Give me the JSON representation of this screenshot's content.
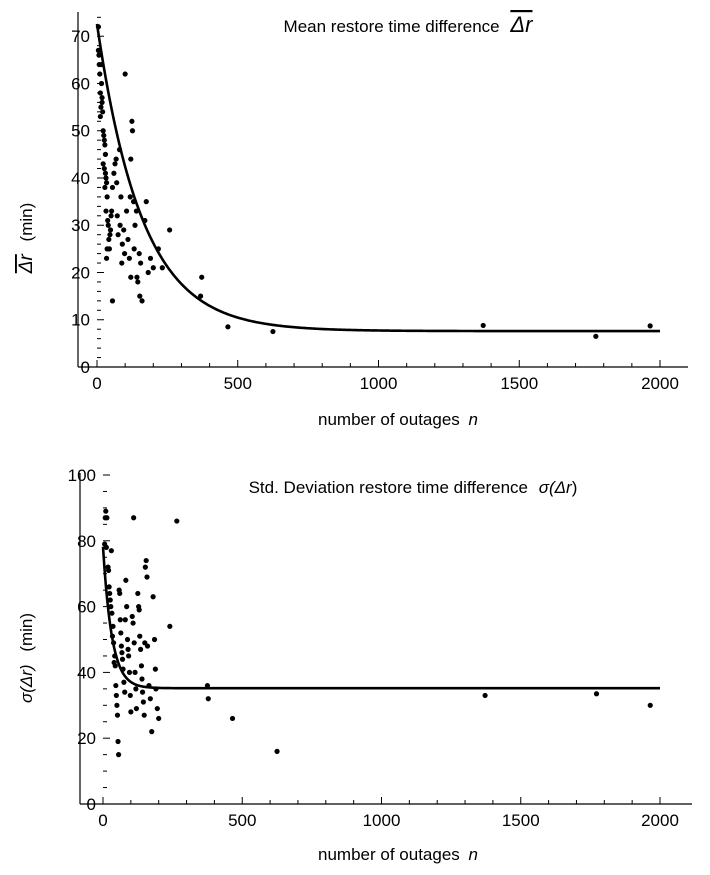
{
  "chart_data": [
    {
      "type": "scatter",
      "title_prefix": "Mean restore time difference",
      "title_symbol": "Δr",
      "title_overbar": true,
      "ylabel_symbol": "Δr",
      "ylabel_unit": "(min)",
      "xlabel_prefix": "number of outages",
      "xlabel_var": "n",
      "xlim": [
        0,
        2000
      ],
      "ylim": [
        0,
        75
      ],
      "x_ticks": [
        0,
        500,
        1000,
        1500,
        2000
      ],
      "y_ticks": [
        0,
        10,
        20,
        30,
        40,
        50,
        60,
        70
      ],
      "x_ticks_minor": [
        100,
        200,
        300,
        400,
        600,
        700,
        800,
        900,
        1100,
        1200,
        1300,
        1400,
        1600,
        1700,
        1800,
        1900
      ],
      "y_ticks_minor": [
        2,
        4,
        6,
        8,
        12,
        14,
        16,
        18,
        22,
        24,
        26,
        28,
        32,
        34,
        36,
        38,
        42,
        44,
        46,
        48,
        52,
        54,
        56,
        58,
        62,
        64,
        66,
        68,
        72,
        74
      ],
      "fit": {
        "form": "a + b*exp(-n/c)",
        "a": 7.6,
        "b": 65,
        "c": 160
      },
      "points": [
        [
          5,
          72
        ],
        [
          5,
          67
        ],
        [
          7,
          66
        ],
        [
          8,
          64
        ],
        [
          10,
          62
        ],
        [
          12,
          58
        ],
        [
          14,
          55
        ],
        [
          16,
          60
        ],
        [
          18,
          57
        ],
        [
          20,
          54
        ],
        [
          12,
          53
        ],
        [
          15,
          64
        ],
        [
          18,
          56
        ],
        [
          22,
          50
        ],
        [
          24,
          49
        ],
        [
          26,
          48
        ],
        [
          28,
          47
        ],
        [
          30,
          45
        ],
        [
          22,
          43
        ],
        [
          26,
          42
        ],
        [
          30,
          41
        ],
        [
          32,
          40
        ],
        [
          34,
          39
        ],
        [
          36,
          36
        ],
        [
          28,
          38
        ],
        [
          32,
          33
        ],
        [
          38,
          31
        ],
        [
          40,
          30
        ],
        [
          42,
          27
        ],
        [
          44,
          25
        ],
        [
          34,
          23
        ],
        [
          36,
          25
        ],
        [
          46,
          28
        ],
        [
          48,
          29
        ],
        [
          50,
          32
        ],
        [
          52,
          33
        ],
        [
          55,
          14
        ],
        [
          55,
          38
        ],
        [
          60,
          41
        ],
        [
          64,
          43
        ],
        [
          68,
          44
        ],
        [
          70,
          39
        ],
        [
          72,
          32
        ],
        [
          75,
          28
        ],
        [
          80,
          46
        ],
        [
          82,
          30
        ],
        [
          85,
          36
        ],
        [
          88,
          22
        ],
        [
          90,
          26
        ],
        [
          95,
          29
        ],
        [
          98,
          24
        ],
        [
          100,
          62
        ],
        [
          105,
          33
        ],
        [
          110,
          27
        ],
        [
          115,
          23
        ],
        [
          120,
          19
        ],
        [
          124,
          52
        ],
        [
          126,
          50
        ],
        [
          120,
          44
        ],
        [
          118,
          36
        ],
        [
          130,
          35
        ],
        [
          132,
          25
        ],
        [
          135,
          30
        ],
        [
          140,
          33
        ],
        [
          142,
          19
        ],
        [
          145,
          18
        ],
        [
          150,
          24
        ],
        [
          152,
          15
        ],
        [
          155,
          22
        ],
        [
          160,
          14
        ],
        [
          170,
          31
        ],
        [
          175,
          35
        ],
        [
          182,
          20
        ],
        [
          190,
          23
        ],
        [
          200,
          21
        ],
        [
          218,
          25
        ],
        [
          232,
          21
        ],
        [
          258,
          29
        ],
        [
          368,
          15
        ],
        [
          372,
          19
        ],
        [
          465,
          8.5
        ],
        [
          625,
          7.5
        ],
        [
          1372,
          8.8
        ],
        [
          1772,
          6.5
        ],
        [
          1965,
          8.7
        ]
      ]
    },
    {
      "type": "scatter",
      "title_prefix": "Std. Deviation restore time difference",
      "title_symbol_pre": "σ(",
      "title_symbol_var": "Δr",
      "title_symbol_post": ")",
      "ylabel_symbol": "σ(Δr)",
      "ylabel_unit": "(min)",
      "xlabel_prefix": "number of outages",
      "xlabel_var": "n",
      "xlim": [
        0,
        2000
      ],
      "ylim": [
        0,
        100
      ],
      "x_ticks": [
        0,
        500,
        1000,
        1500,
        2000
      ],
      "y_ticks": [
        0,
        20,
        40,
        60,
        80,
        100
      ],
      "x_ticks_minor": [
        100,
        200,
        300,
        400,
        600,
        700,
        800,
        900,
        1100,
        1200,
        1300,
        1400,
        1600,
        1700,
        1800,
        1900
      ],
      "y_ticks_minor": [
        5,
        10,
        15,
        25,
        30,
        35,
        45,
        50,
        55,
        65,
        70,
        75,
        85,
        90,
        95
      ],
      "fit": {
        "form": "a + b*exp(-n/c)",
        "a": 35.2,
        "b": 43,
        "c": 32
      },
      "points": [
        [
          6,
          79
        ],
        [
          8,
          87
        ],
        [
          10,
          89
        ],
        [
          12,
          78
        ],
        [
          14,
          87
        ],
        [
          18,
          72
        ],
        [
          20,
          71
        ],
        [
          22,
          66
        ],
        [
          24,
          64
        ],
        [
          26,
          62
        ],
        [
          28,
          60
        ],
        [
          30,
          77
        ],
        [
          32,
          58
        ],
        [
          34,
          51
        ],
        [
          36,
          54
        ],
        [
          38,
          49
        ],
        [
          40,
          43
        ],
        [
          42,
          45
        ],
        [
          44,
          42
        ],
        [
          46,
          36
        ],
        [
          48,
          33
        ],
        [
          50,
          30
        ],
        [
          52,
          27
        ],
        [
          54,
          19
        ],
        [
          56,
          15
        ],
        [
          58,
          65
        ],
        [
          60,
          64
        ],
        [
          62,
          56
        ],
        [
          64,
          52
        ],
        [
          66,
          48
        ],
        [
          68,
          46
        ],
        [
          70,
          44
        ],
        [
          72,
          41
        ],
        [
          75,
          37
        ],
        [
          78,
          34
        ],
        [
          80,
          56
        ],
        [
          82,
          68
        ],
        [
          85,
          60
        ],
        [
          88,
          50
        ],
        [
          90,
          47
        ],
        [
          92,
          45
        ],
        [
          95,
          40
        ],
        [
          98,
          33
        ],
        [
          100,
          28
        ],
        [
          105,
          57
        ],
        [
          108,
          55
        ],
        [
          110,
          87
        ],
        [
          112,
          49
        ],
        [
          115,
          40
        ],
        [
          118,
          35
        ],
        [
          120,
          29
        ],
        [
          125,
          64
        ],
        [
          128,
          60
        ],
        [
          130,
          59
        ],
        [
          132,
          51
        ],
        [
          135,
          47
        ],
        [
          138,
          42
        ],
        [
          140,
          38
        ],
        [
          142,
          34
        ],
        [
          145,
          31
        ],
        [
          148,
          27
        ],
        [
          150,
          49
        ],
        [
          152,
          72
        ],
        [
          155,
          74
        ],
        [
          158,
          69
        ],
        [
          160,
          48
        ],
        [
          165,
          36
        ],
        [
          170,
          32
        ],
        [
          175,
          22
        ],
        [
          180,
          63
        ],
        [
          185,
          50
        ],
        [
          188,
          41
        ],
        [
          190,
          35
        ],
        [
          195,
          29
        ],
        [
          200,
          26
        ],
        [
          240,
          54
        ],
        [
          265,
          86
        ],
        [
          375,
          36
        ],
        [
          378,
          32
        ],
        [
          465,
          26
        ],
        [
          625,
          16
        ],
        [
          1372,
          33
        ],
        [
          1772,
          33.5
        ],
        [
          1965,
          30
        ]
      ]
    }
  ]
}
